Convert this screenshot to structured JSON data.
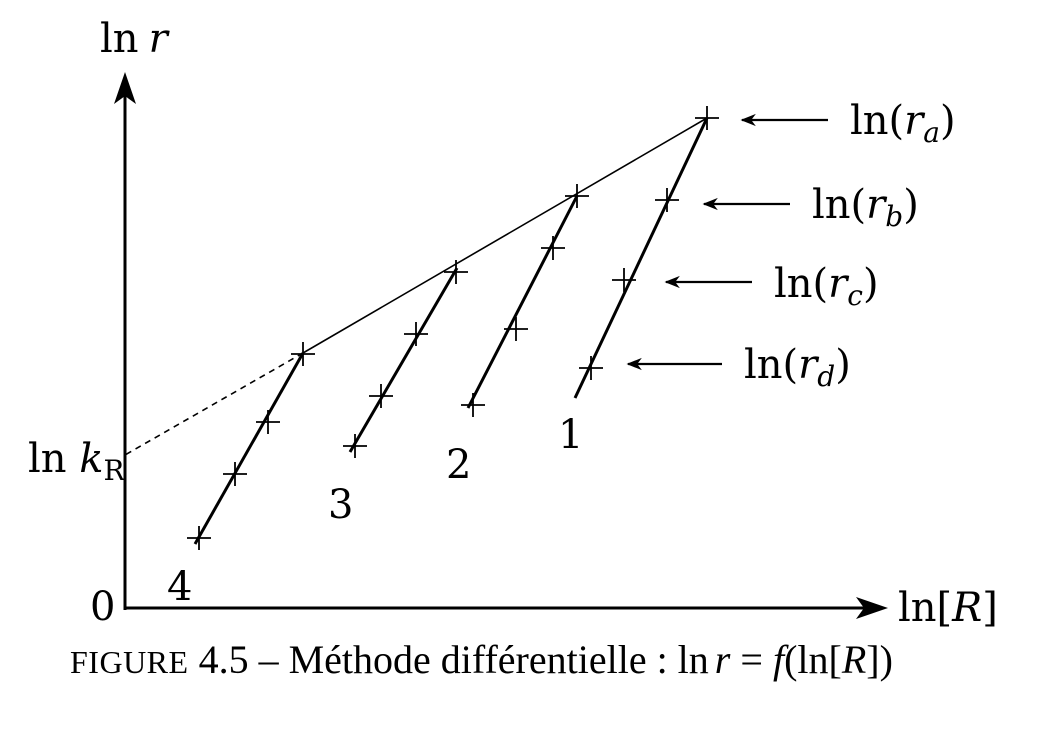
{
  "y_axis_label": {
    "prefix": "ln",
    "var": "r"
  },
  "x_axis_label": {
    "prefix": "ln[",
    "var": "R",
    "suffix": "]"
  },
  "origin_label": "0",
  "intercept_label": {
    "prefix": "ln ",
    "var": "k",
    "sub": "R"
  },
  "rate_labels": [
    {
      "sub": "a"
    },
    {
      "sub": "b"
    },
    {
      "sub": "c"
    },
    {
      "sub": "d"
    }
  ],
  "curve_labels": [
    "1",
    "2",
    "3",
    "4"
  ],
  "caption": {
    "fig_word": "Figure",
    "text": " 4.5 – Méthode différentielle : ln",
    "r": "r",
    "eq": " = ",
    "f": "f",
    "arg": "(ln[",
    "R": "R",
    "close": "])"
  },
  "colors": {
    "ink": "#000000",
    "background": "#ffffff"
  }
}
